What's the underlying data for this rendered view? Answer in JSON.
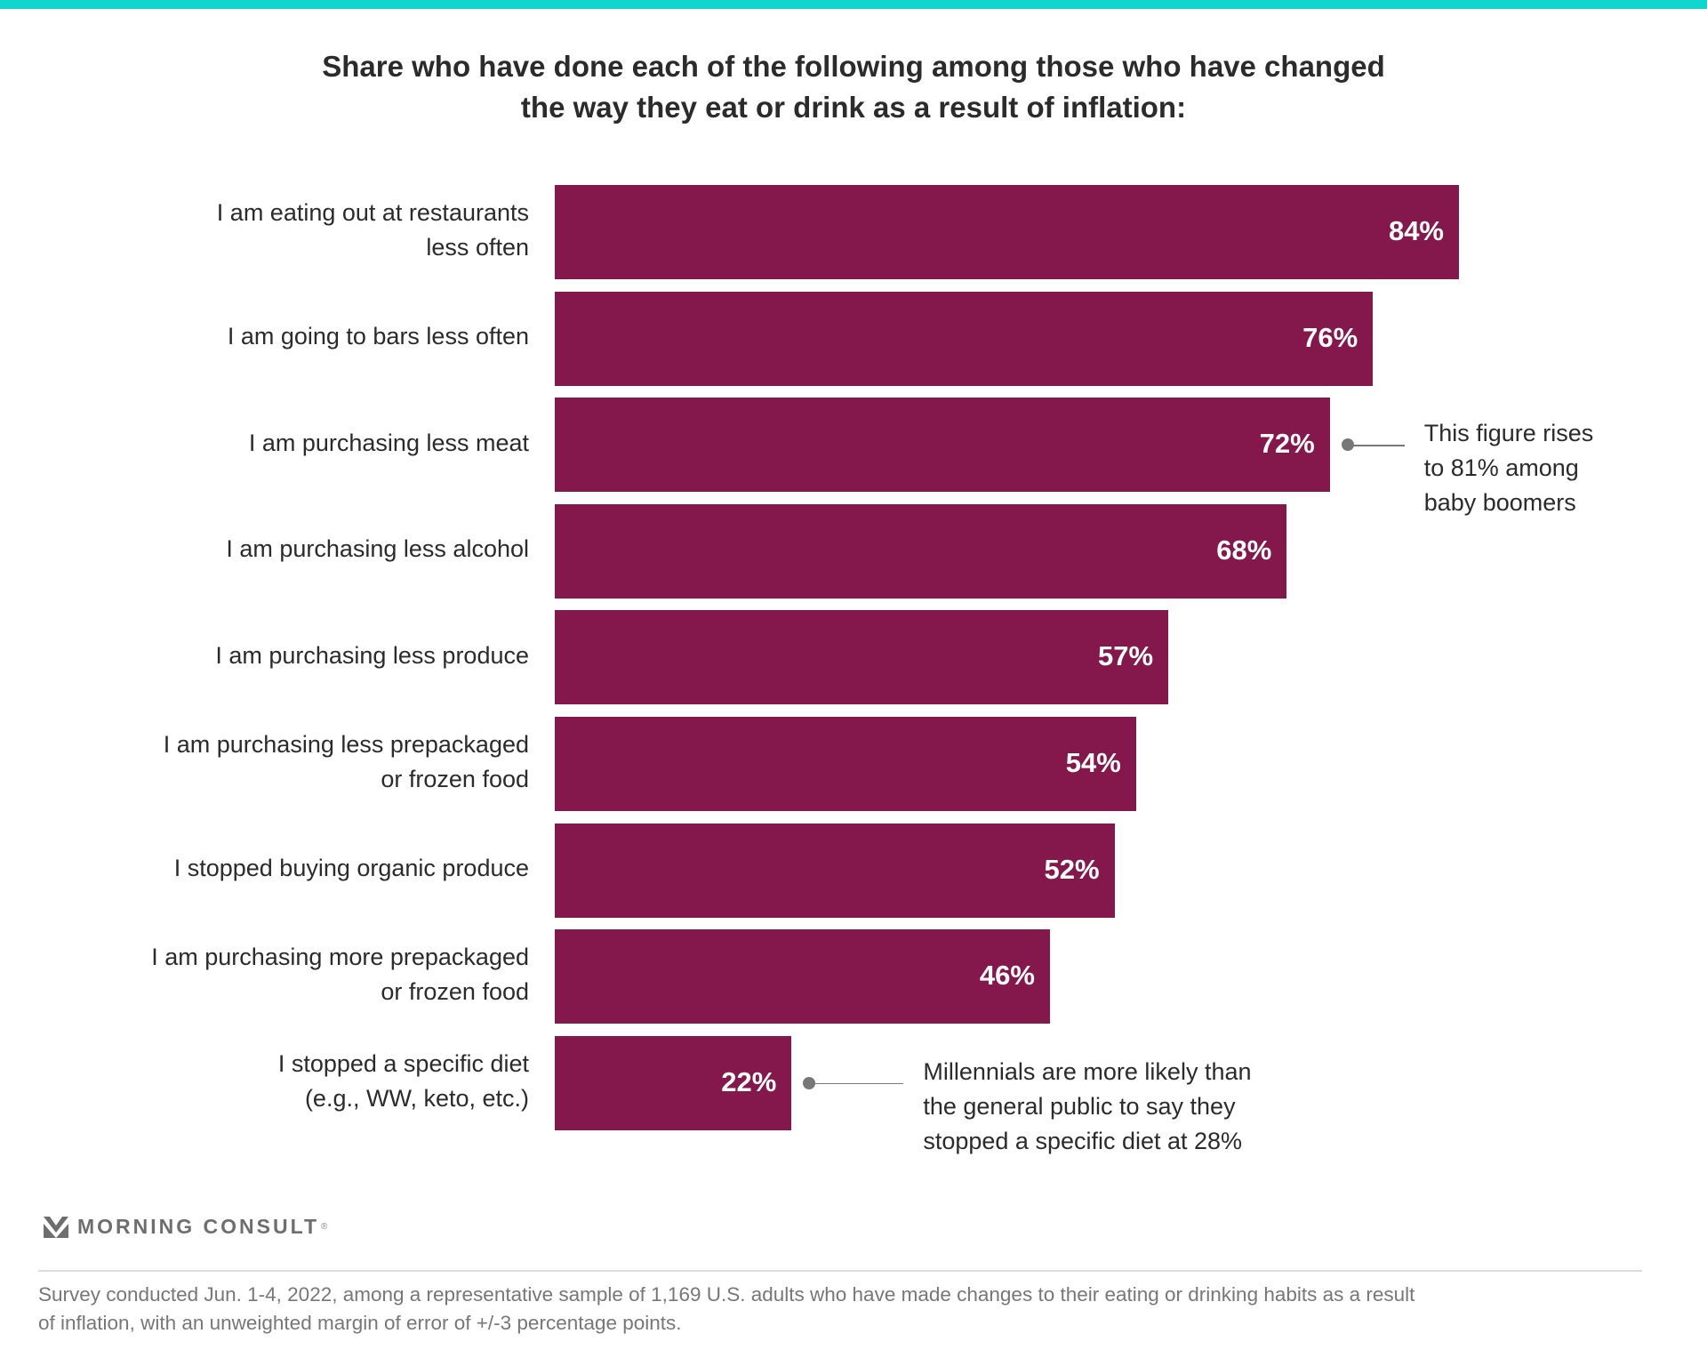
{
  "colors": {
    "top_bar": "#10d5cd",
    "bar": "#84174b",
    "value_label": "#ffffff",
    "annotation_marker": "#777777"
  },
  "chart_data": {
    "type": "bar",
    "orientation": "horizontal",
    "title": [
      "Share who have done each of the following among those who have changed",
      "the way they eat or drink as a result of inflation:"
    ],
    "categories": [
      [
        "I am eating out at restaurants",
        "less often"
      ],
      [
        "I am going to bars less often"
      ],
      [
        "I am purchasing less meat"
      ],
      [
        "I am purchasing less alcohol"
      ],
      [
        "I am purchasing less produce"
      ],
      [
        "I am purchasing less prepackaged",
        "or frozen food"
      ],
      [
        "I stopped buying organic produce"
      ],
      [
        "I am purchasing more prepackaged",
        "or frozen food"
      ],
      [
        "I stopped a specific diet",
        "(e.g., WW, keto, etc.)"
      ]
    ],
    "values": [
      84,
      76,
      72,
      68,
      57,
      54,
      52,
      46,
      22
    ],
    "value_labels": [
      "84%",
      "76%",
      "72%",
      "68%",
      "57%",
      "54%",
      "52%",
      "46%",
      "22%"
    ],
    "xlim": [
      0,
      100
    ],
    "grid": false,
    "annotations": [
      {
        "category_index": 2,
        "lines": [
          "This figure rises",
          "to 81% among",
          "baby boomers"
        ]
      },
      {
        "category_index": 8,
        "lines": [
          "Millennials are more likely than",
          "the general public to say they",
          "stopped a specific diet at 28%"
        ]
      }
    ]
  },
  "logo": {
    "text": "MORNING CONSULT",
    "mark": "®"
  },
  "footnote": [
    "Survey conducted Jun. 1-4, 2022, among a representative sample of 1,169 U.S. adults who have made changes to their eating or drinking habits as a result",
    "of inflation, with an unweighted margin of error of +/-3 percentage points."
  ]
}
